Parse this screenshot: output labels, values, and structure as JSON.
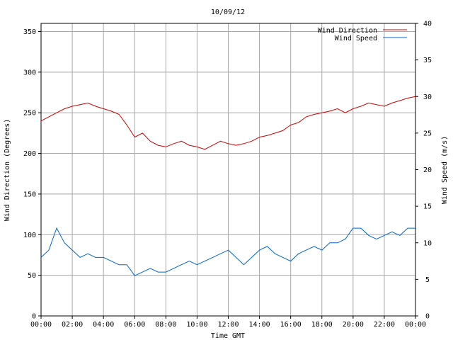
{
  "chart_data": {
    "type": "line",
    "title": "10/09/12",
    "xlabel": "Time GMT",
    "ylabel_left": "Wind Direction (Degrees)",
    "ylabel_right": "Wind Speed (m/s)",
    "x_ticks": [
      "00:00",
      "02:00",
      "04:00",
      "06:00",
      "08:00",
      "10:00",
      "12:00",
      "14:00",
      "16:00",
      "18:00",
      "20:00",
      "22:00",
      "00:00"
    ],
    "x_range_hours": [
      0,
      24
    ],
    "ylim_left": [
      0,
      360
    ],
    "yticks_left": [
      0,
      50,
      100,
      150,
      200,
      250,
      300,
      350
    ],
    "ylim_right": [
      0,
      40
    ],
    "yticks_right": [
      0,
      5,
      10,
      15,
      20,
      25,
      30,
      35,
      40
    ],
    "grid": true,
    "legend_position": "top-right",
    "series": [
      {
        "name": "Wind Direction",
        "axis": "left",
        "color": "#cc0000",
        "hours": [
          0,
          0.5,
          1,
          1.5,
          2,
          2.5,
          3,
          3.5,
          4,
          4.5,
          5,
          5.5,
          6,
          6.5,
          7,
          7.5,
          8,
          8.5,
          9,
          9.5,
          10,
          10.5,
          11,
          11.5,
          12,
          12.5,
          13,
          13.5,
          14,
          14.5,
          15,
          15.5,
          16,
          16.5,
          17,
          17.5,
          18,
          18.5,
          19,
          19.5,
          20,
          20.5,
          21,
          21.5,
          22,
          22.5,
          23,
          23.5,
          24
        ],
        "values": [
          240,
          245,
          250,
          255,
          258,
          260,
          262,
          258,
          255,
          252,
          248,
          235,
          220,
          225,
          215,
          210,
          208,
          212,
          215,
          210,
          208,
          205,
          210,
          215,
          212,
          210,
          212,
          215,
          220,
          222,
          225,
          228,
          235,
          238,
          245,
          248,
          250,
          252,
          255,
          250,
          255,
          258,
          262,
          260,
          258,
          262,
          265,
          268,
          270
        ]
      },
      {
        "name": "Wind Speed",
        "axis": "right",
        "color": "#0066cc",
        "hours": [
          0,
          0.5,
          1,
          1.5,
          2,
          2.5,
          3,
          3.5,
          4,
          4.5,
          5,
          5.5,
          6,
          6.5,
          7,
          7.5,
          8,
          8.5,
          9,
          9.5,
          10,
          10.5,
          11,
          11.5,
          12,
          12.5,
          13,
          13.5,
          14,
          14.5,
          15,
          15.5,
          16,
          16.5,
          17,
          17.5,
          18,
          18.5,
          19,
          19.5,
          20,
          20.5,
          21,
          21.5,
          22,
          22.5,
          23,
          23.5,
          24
        ],
        "values": [
          8,
          9,
          12,
          10,
          9,
          8,
          8.5,
          8,
          8,
          7.5,
          7,
          7,
          5.5,
          6,
          6.5,
          6,
          6,
          6.5,
          7,
          7.5,
          7,
          7.5,
          8,
          8.5,
          9,
          8,
          7,
          8,
          9,
          9.5,
          8.5,
          8,
          7.5,
          8.5,
          9,
          9.5,
          9,
          10,
          10,
          10.5,
          12,
          12,
          11,
          10.5,
          11,
          11.5,
          11,
          12,
          12
        ]
      }
    ]
  }
}
